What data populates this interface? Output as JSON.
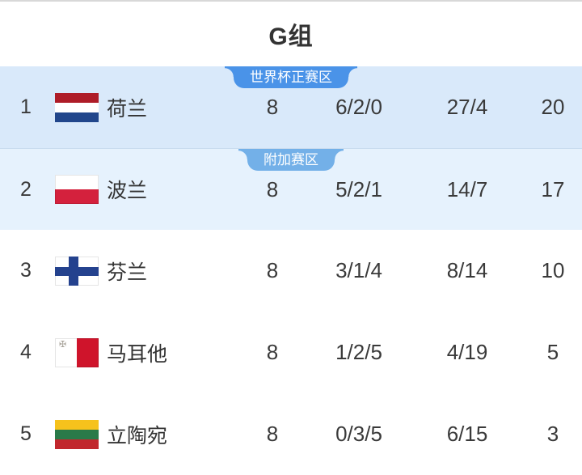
{
  "title": "G组",
  "colors": {
    "row_highlight_qualified": "#d9e9fa",
    "row_highlight_playoff": "#e6f2fd",
    "badge_qualified": "#4a93e8",
    "badge_playoff": "#73b0e8",
    "text": "#333333"
  },
  "table": {
    "rows": [
      {
        "rank": "1",
        "team": "荷兰",
        "flag": "netherlands",
        "played": "8",
        "wdl": "6/2/0",
        "goals": "27/4",
        "points": "20",
        "zone_badge": {
          "label": "世界杯正赛区",
          "type": "primary"
        },
        "highlight": "1"
      },
      {
        "rank": "2",
        "team": "波兰",
        "flag": "poland",
        "played": "8",
        "wdl": "5/2/1",
        "goals": "14/7",
        "points": "17",
        "zone_badge": {
          "label": "附加赛区",
          "type": "secondary"
        },
        "highlight": "2"
      },
      {
        "rank": "3",
        "team": "芬兰",
        "flag": "finland",
        "played": "8",
        "wdl": "3/1/4",
        "goals": "8/14",
        "points": "10"
      },
      {
        "rank": "4",
        "team": "马耳他",
        "flag": "malta",
        "played": "8",
        "wdl": "1/2/5",
        "goals": "4/19",
        "points": "5"
      },
      {
        "rank": "5",
        "team": "立陶宛",
        "flag": "lithuania",
        "played": "8",
        "wdl": "0/3/5",
        "goals": "6/15",
        "points": "3"
      }
    ]
  }
}
